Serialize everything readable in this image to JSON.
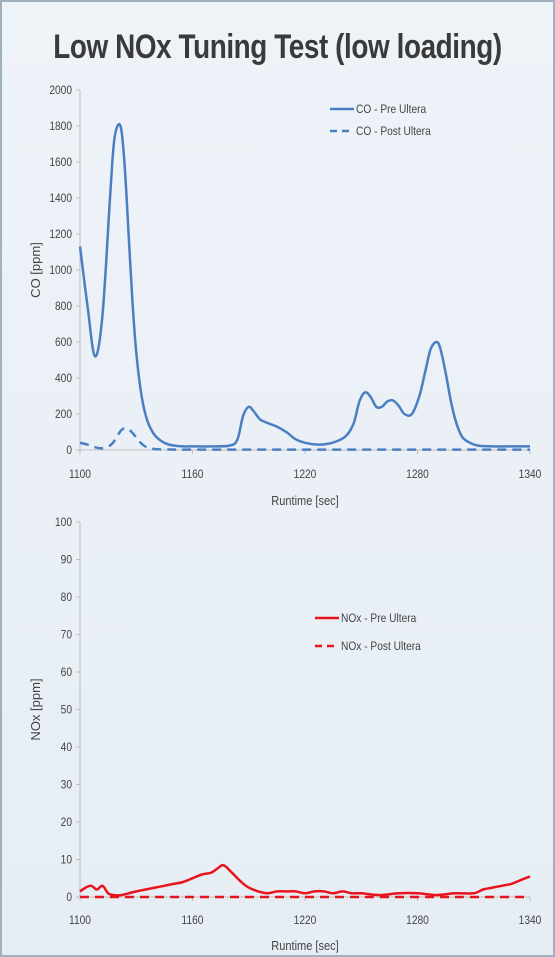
{
  "chart_data": [
    {
      "type": "line",
      "title": "Low NOx Tuning Test (low loading)",
      "xlabel": "Runtime [sec]",
      "ylabel": "CO [ppm]",
      "xlim": [
        1100,
        1340
      ],
      "ylim": [
        0,
        2000
      ],
      "xticks": [
        1100,
        1160,
        1220,
        1280,
        1340
      ],
      "yticks": [
        0,
        200,
        400,
        600,
        800,
        1000,
        1200,
        1400,
        1600,
        1800,
        2000
      ],
      "legend_position": "top-right",
      "grid": false,
      "series": [
        {
          "name": "CO - Pre Ultera",
          "color": "#4a7fc1",
          "style": "solid",
          "x": [
            1100,
            1104,
            1108,
            1112,
            1116,
            1118,
            1120,
            1122,
            1124,
            1126,
            1128,
            1130,
            1133,
            1136,
            1139,
            1142,
            1146,
            1150,
            1155,
            1160,
            1170,
            1180,
            1184,
            1187,
            1190,
            1193,
            1196,
            1200,
            1205,
            1210,
            1215,
            1220,
            1228,
            1236,
            1242,
            1246,
            1249,
            1252,
            1255,
            1258,
            1261,
            1264,
            1267,
            1270,
            1273,
            1277,
            1281,
            1284,
            1287,
            1290,
            1292,
            1295,
            1298,
            1301,
            1304,
            1308,
            1312,
            1320,
            1330,
            1340
          ],
          "values": [
            1130,
            800,
            520,
            750,
            1400,
            1700,
            1800,
            1780,
            1550,
            1180,
            820,
            540,
            290,
            160,
            95,
            60,
            35,
            25,
            20,
            20,
            20,
            25,
            60,
            190,
            240,
            210,
            170,
            150,
            130,
            100,
            60,
            40,
            30,
            45,
            80,
            150,
            270,
            320,
            295,
            240,
            240,
            270,
            275,
            245,
            200,
            200,
            300,
            430,
            560,
            600,
            570,
            430,
            260,
            140,
            70,
            40,
            25,
            20,
            20,
            20
          ]
        },
        {
          "name": "CO - Post Ultera",
          "color": "#4a7fc1",
          "style": "dashed",
          "x": [
            1100,
            1104,
            1108,
            1112,
            1116,
            1119,
            1122,
            1125,
            1128,
            1131,
            1134,
            1138,
            1145,
            1160,
            1200,
            1260,
            1340
          ],
          "values": [
            40,
            30,
            15,
            10,
            25,
            60,
            110,
            120,
            95,
            55,
            25,
            8,
            3,
            2,
            2,
            2,
            2
          ]
        }
      ]
    },
    {
      "type": "line",
      "xlabel": "Runtime [sec]",
      "ylabel": "NOx [ppm]",
      "xlim": [
        1100,
        1340
      ],
      "ylim": [
        0,
        100
      ],
      "xticks": [
        1100,
        1160,
        1220,
        1280,
        1340
      ],
      "yticks": [
        0,
        10,
        20,
        30,
        40,
        50,
        60,
        70,
        80,
        90,
        100
      ],
      "legend_position": "center-right",
      "grid": false,
      "series": [
        {
          "name": "NOx - Pre Ultera",
          "color": "#e8141c",
          "style": "solid",
          "x": [
            1100,
            1103,
            1106,
            1109,
            1112,
            1115,
            1118,
            1122,
            1126,
            1130,
            1135,
            1140,
            1145,
            1150,
            1155,
            1160,
            1165,
            1170,
            1173,
            1176,
            1178,
            1180,
            1183,
            1186,
            1190,
            1195,
            1200,
            1205,
            1210,
            1215,
            1220,
            1225,
            1230,
            1235,
            1240,
            1245,
            1250,
            1260,
            1270,
            1280,
            1290,
            1300,
            1310,
            1315,
            1320,
            1325,
            1330,
            1335,
            1340
          ],
          "values": [
            1.5,
            2.5,
            3,
            2,
            3,
            1,
            0.5,
            0.5,
            1,
            1.5,
            2,
            2.5,
            3,
            3.5,
            4,
            5,
            6,
            6.5,
            7.5,
            8.5,
            8,
            7,
            5.5,
            4,
            2.5,
            1.5,
            1,
            1.5,
            1.5,
            1.5,
            1,
            1.5,
            1.5,
            1,
            1.5,
            1,
            1,
            0.5,
            1,
            1,
            0.5,
            1,
            1,
            2,
            2.5,
            3,
            3.5,
            4.5,
            5.5
          ]
        },
        {
          "name": "NOx - Post Ultera",
          "color": "#e8141c",
          "style": "dashed",
          "x": [
            1100,
            1150,
            1200,
            1250,
            1300,
            1340
          ],
          "values": [
            0,
            0,
            0,
            0,
            0,
            0
          ]
        }
      ]
    }
  ]
}
